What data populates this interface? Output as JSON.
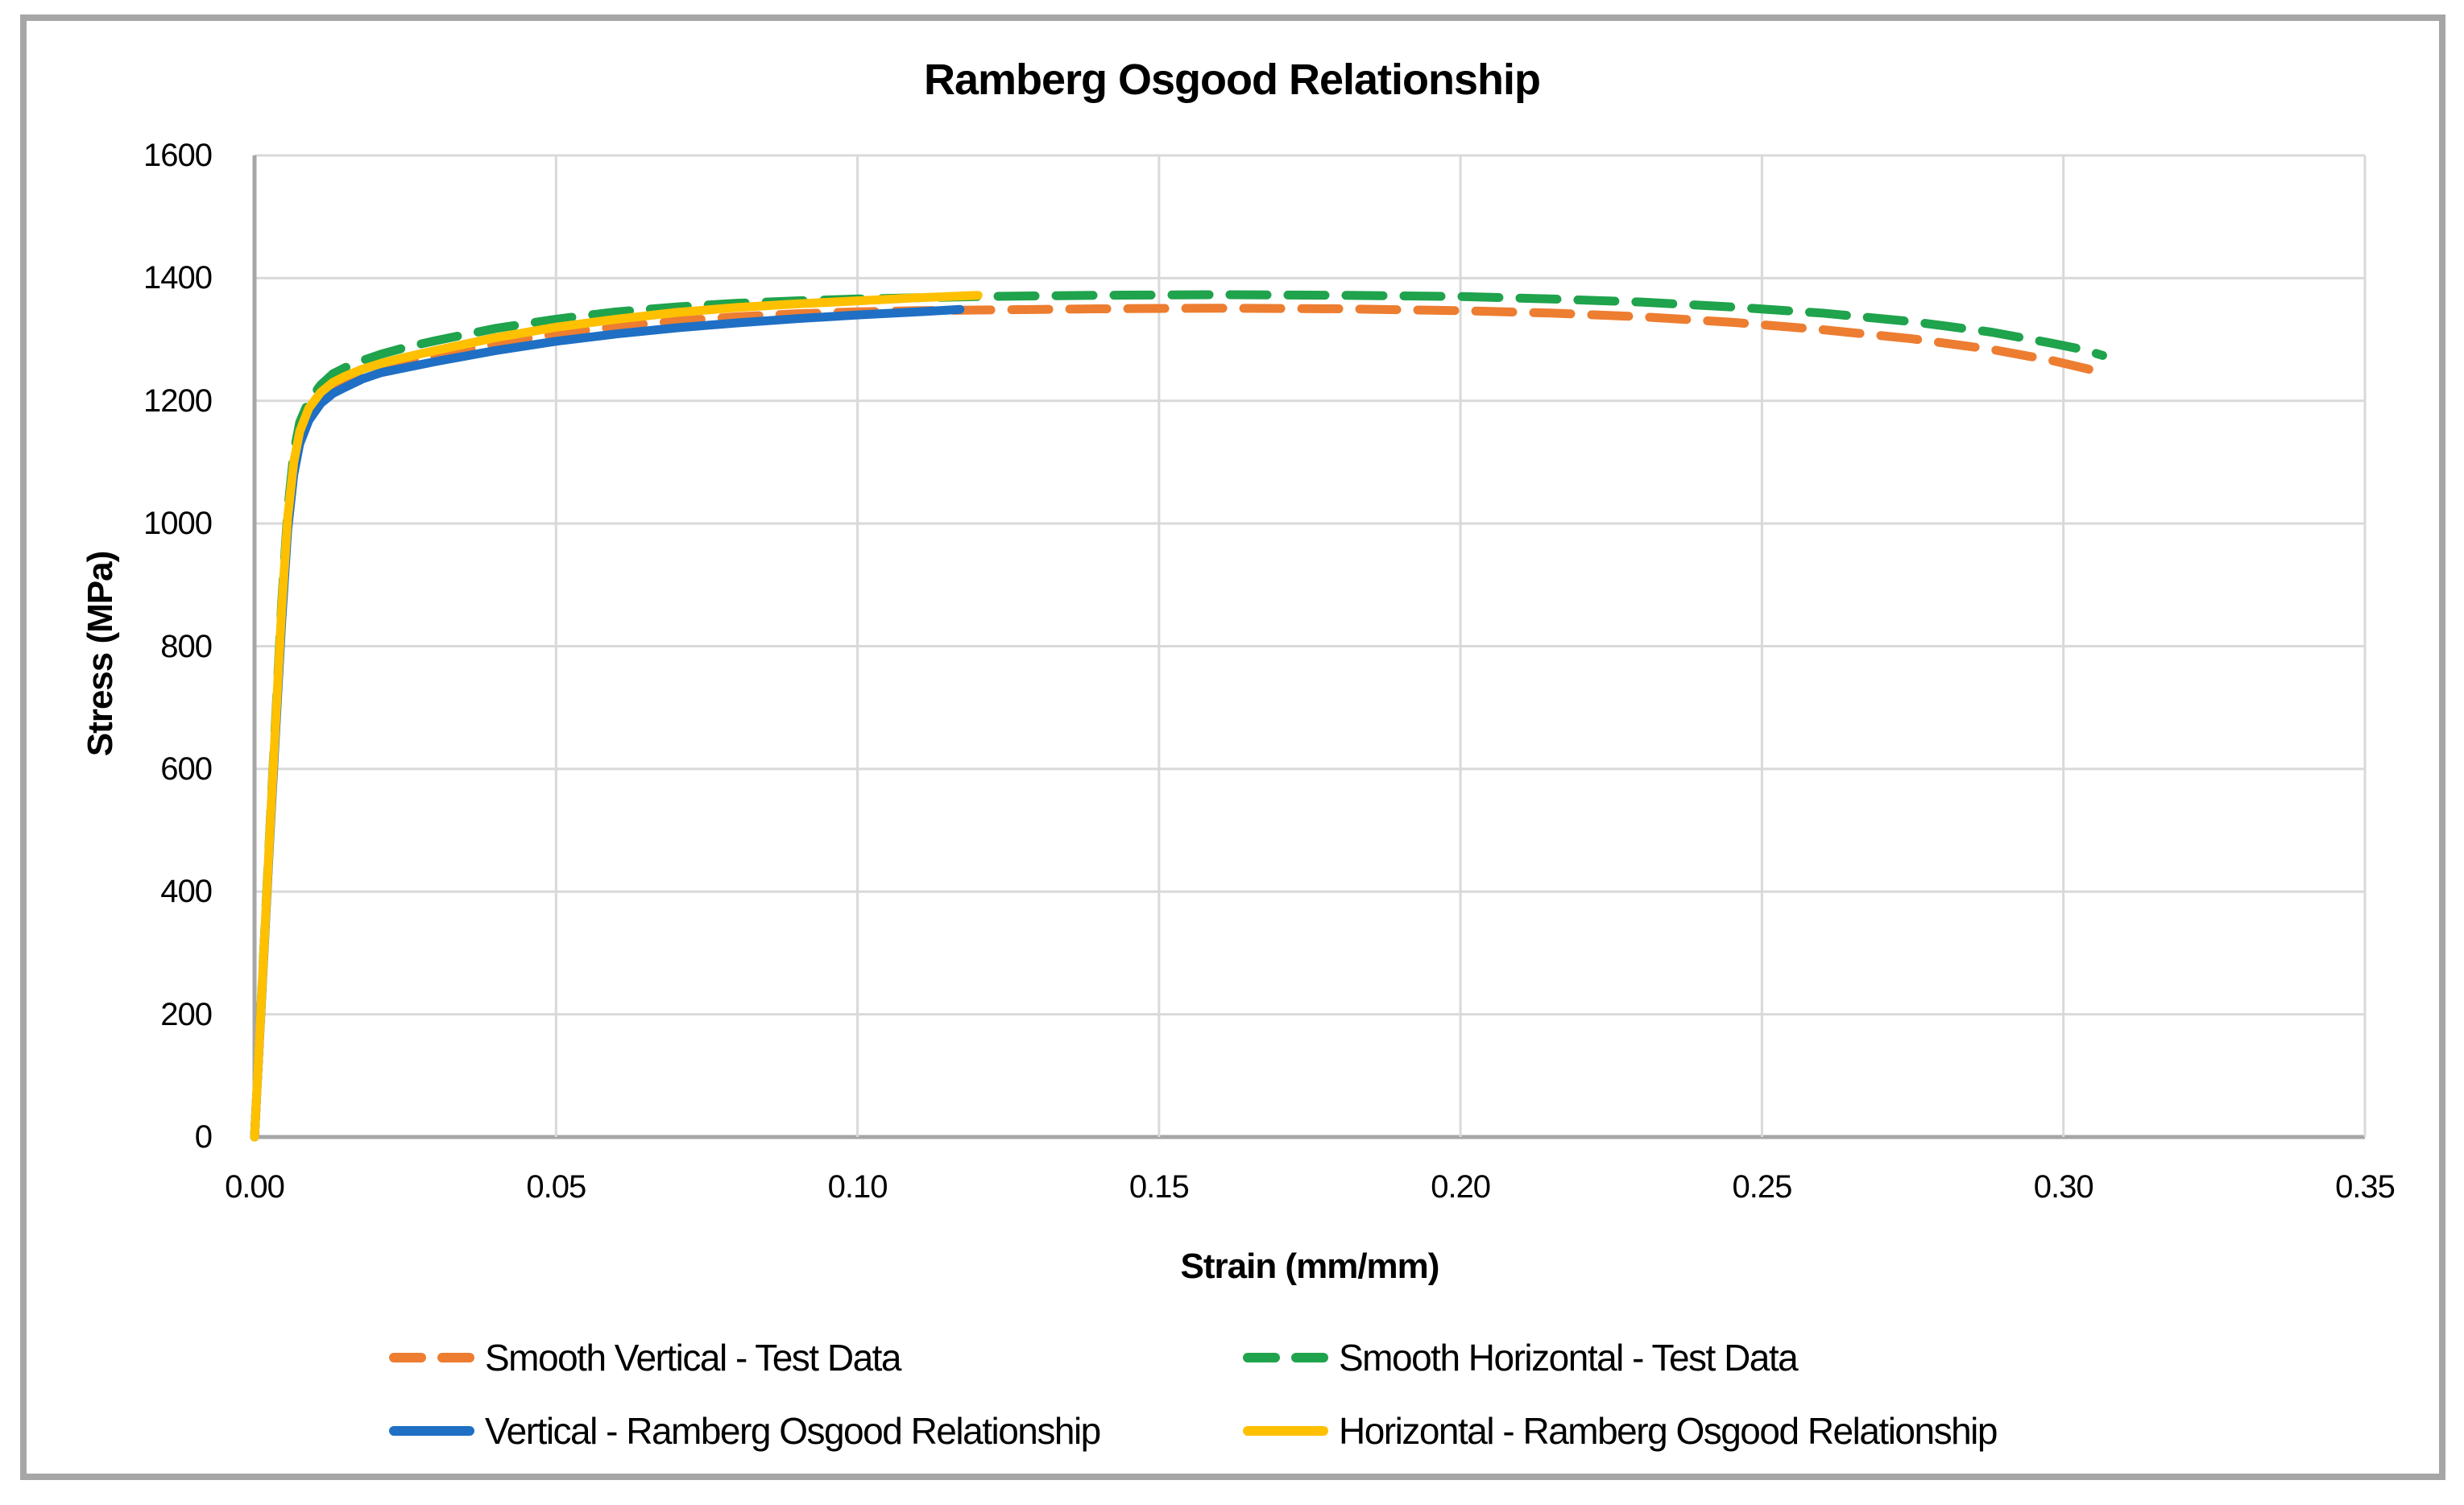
{
  "title": "Ramberg Osgood Relationship",
  "chart_data": {
    "type": "line",
    "title": "Ramberg Osgood Relationship",
    "xlabel": "Strain (mm/mm)",
    "ylabel": "Stress (MPa)",
    "xlim": [
      0,
      0.35
    ],
    "ylim": [
      0,
      1600
    ],
    "xticks": [
      "0.00",
      "0.05",
      "0.10",
      "0.15",
      "0.20",
      "0.25",
      "0.30",
      "0.35"
    ],
    "yticks": [
      "0",
      "200",
      "400",
      "600",
      "800",
      "1000",
      "1200",
      "1400",
      "1600"
    ],
    "grid": true,
    "legend_position": "bottom",
    "colors": {
      "grid": "#d9d9d9",
      "axis": "#a6a6a6",
      "frame": "#a6a6a6",
      "orange": "#ED7D31",
      "green": "#1FA34C",
      "blue": "#1F6FC4",
      "yellow": "#FFC000"
    },
    "series": [
      {
        "name": "Smooth Vertical - Test Data",
        "color": "#ED7D31",
        "dashed": true,
        "points": [
          [
            0,
            0
          ],
          [
            0.0026,
            505
          ],
          [
            0.0045,
            850
          ],
          [
            0.0055,
            1000
          ],
          [
            0.0065,
            1090
          ],
          [
            0.0075,
            1140
          ],
          [
            0.009,
            1178
          ],
          [
            0.011,
            1205
          ],
          [
            0.013,
            1222
          ],
          [
            0.015,
            1232
          ],
          [
            0.018,
            1244
          ],
          [
            0.021,
            1254
          ],
          [
            0.025,
            1263
          ],
          [
            0.03,
            1273
          ],
          [
            0.04,
            1293
          ],
          [
            0.05,
            1309
          ],
          [
            0.06,
            1321
          ],
          [
            0.07,
            1330
          ],
          [
            0.08,
            1337
          ],
          [
            0.09,
            1342
          ],
          [
            0.1,
            1345
          ],
          [
            0.11,
            1347
          ],
          [
            0.12,
            1348
          ],
          [
            0.14,
            1350
          ],
          [
            0.16,
            1351
          ],
          [
            0.18,
            1350
          ],
          [
            0.2,
            1347
          ],
          [
            0.215,
            1343
          ],
          [
            0.23,
            1337
          ],
          [
            0.245,
            1328
          ],
          [
            0.26,
            1316
          ],
          [
            0.275,
            1301
          ],
          [
            0.288,
            1284
          ],
          [
            0.298,
            1266
          ],
          [
            0.304,
            1252
          ],
          [
            0.306,
            1245
          ]
        ]
      },
      {
        "name": "Smooth Horizontal - Test Data",
        "color": "#1FA34C",
        "dashed": true,
        "points": [
          [
            0,
            0
          ],
          [
            0.0026,
            515
          ],
          [
            0.0045,
            870
          ],
          [
            0.0055,
            1020
          ],
          [
            0.0065,
            1115
          ],
          [
            0.0075,
            1165
          ],
          [
            0.009,
            1200
          ],
          [
            0.011,
            1226
          ],
          [
            0.013,
            1244
          ],
          [
            0.015,
            1254
          ],
          [
            0.018,
            1266
          ],
          [
            0.021,
            1276
          ],
          [
            0.025,
            1287
          ],
          [
            0.03,
            1298
          ],
          [
            0.04,
            1318
          ],
          [
            0.05,
            1333
          ],
          [
            0.06,
            1345
          ],
          [
            0.07,
            1353
          ],
          [
            0.08,
            1359
          ],
          [
            0.09,
            1363
          ],
          [
            0.1,
            1366
          ],
          [
            0.11,
            1368
          ],
          [
            0.12,
            1370
          ],
          [
            0.14,
            1372
          ],
          [
            0.16,
            1373
          ],
          [
            0.18,
            1372
          ],
          [
            0.2,
            1370
          ],
          [
            0.215,
            1366
          ],
          [
            0.23,
            1361
          ],
          [
            0.245,
            1353
          ],
          [
            0.26,
            1343
          ],
          [
            0.275,
            1329
          ],
          [
            0.288,
            1312
          ],
          [
            0.298,
            1294
          ],
          [
            0.3035,
            1283
          ],
          [
            0.3065,
            1274
          ]
        ]
      },
      {
        "name": "Vertical - Ramberg Osgood Relationship",
        "color": "#1F6FC4",
        "dashed": false,
        "points": [
          [
            0,
            0
          ],
          [
            0.0026,
            500
          ],
          [
            0.0045,
            840
          ],
          [
            0.0055,
            990
          ],
          [
            0.0065,
            1080
          ],
          [
            0.0075,
            1130
          ],
          [
            0.009,
            1168
          ],
          [
            0.011,
            1196
          ],
          [
            0.013,
            1212
          ],
          [
            0.015,
            1222
          ],
          [
            0.018,
            1236
          ],
          [
            0.021,
            1246
          ],
          [
            0.025,
            1254
          ],
          [
            0.03,
            1264
          ],
          [
            0.04,
            1282
          ],
          [
            0.05,
            1297
          ],
          [
            0.06,
            1309
          ],
          [
            0.07,
            1319
          ],
          [
            0.08,
            1327
          ],
          [
            0.09,
            1334
          ],
          [
            0.1,
            1340
          ],
          [
            0.11,
            1345
          ],
          [
            0.117,
            1349
          ]
        ]
      },
      {
        "name": "Horizontal - Ramberg Osgood Relationship",
        "color": "#FFC000",
        "dashed": false,
        "points": [
          [
            0,
            0
          ],
          [
            0.0026,
            510
          ],
          [
            0.0045,
            860
          ],
          [
            0.0055,
            1010
          ],
          [
            0.0065,
            1100
          ],
          [
            0.0075,
            1150
          ],
          [
            0.009,
            1188
          ],
          [
            0.011,
            1214
          ],
          [
            0.013,
            1230
          ],
          [
            0.015,
            1240
          ],
          [
            0.018,
            1252
          ],
          [
            0.021,
            1261
          ],
          [
            0.025,
            1271
          ],
          [
            0.03,
            1282
          ],
          [
            0.04,
            1303
          ],
          [
            0.05,
            1320
          ],
          [
            0.06,
            1333
          ],
          [
            0.07,
            1344
          ],
          [
            0.08,
            1352
          ],
          [
            0.09,
            1358
          ],
          [
            0.1,
            1363
          ],
          [
            0.11,
            1368
          ],
          [
            0.12,
            1372
          ]
        ]
      }
    ]
  },
  "legend": {
    "items": [
      {
        "label": "Smooth Vertical - Test Data",
        "color": "#ED7D31",
        "dashed": true
      },
      {
        "label": "Smooth Horizontal - Test Data",
        "color": "#1FA34C",
        "dashed": true
      },
      {
        "label": "Vertical - Ramberg Osgood Relationship",
        "color": "#1F6FC4",
        "dashed": false
      },
      {
        "label": "Horizontal - Ramberg Osgood Relationship",
        "color": "#FFC000",
        "dashed": false
      }
    ]
  }
}
